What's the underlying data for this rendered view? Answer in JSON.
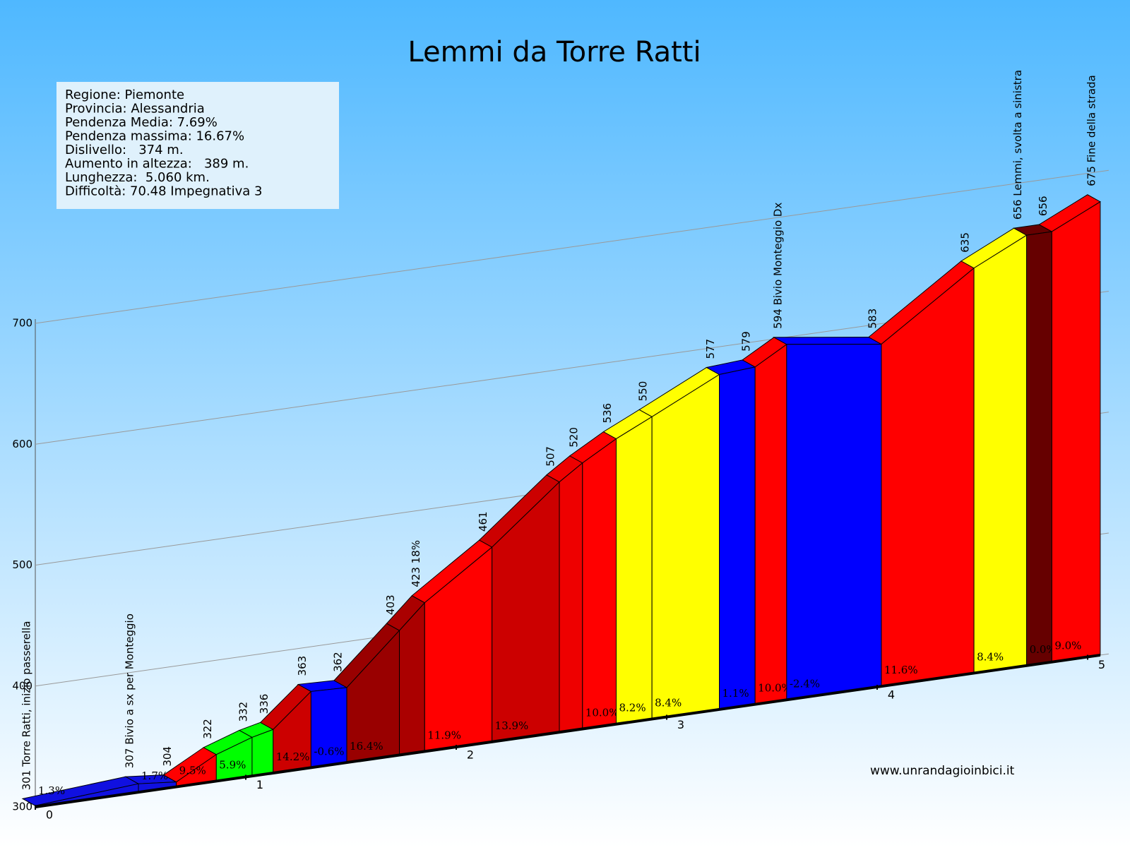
{
  "chart_data": {
    "type": "profile",
    "title": "Lemmi da Torre Ratti",
    "info": [
      "Regione: Piemonte",
      "Provincia: Alessandria",
      "Pendenza Media: 7.69%",
      "Pendenza massima: 16.67%",
      "Dislivello:   374 m.",
      "Aumento in altezza:   389 m.",
      "Lunghezza:  5.060 km.",
      "Difficoltà: 70.48 Impegnativa 3"
    ],
    "watermark": "www.unrandagioinbici.it",
    "x": [
      0,
      0.49,
      0.67,
      0.86,
      1.03,
      1.13,
      1.31,
      1.48,
      1.73,
      1.85,
      2.17,
      2.49,
      2.6,
      2.76,
      2.93,
      3.25,
      3.42,
      3.57,
      4.02,
      4.46,
      4.71,
      4.83,
      5.06
    ],
    "values": [
      301,
      307,
      304,
      322,
      332,
      336,
      363,
      362,
      403,
      423,
      461,
      507,
      520,
      536,
      550,
      577,
      579,
      594,
      583,
      635,
      656,
      656,
      675
    ],
    "value_labels": [
      "301 Torre Ratti,  inizio passerella",
      "307 Bivio a sx per Monteggio",
      "304",
      "322",
      "332",
      "336",
      "363",
      "362",
      "403",
      "423 18%",
      "461",
      "507",
      "520",
      "536",
      "550",
      "577",
      "579",
      "594 Bivio Monteggio Dx",
      "583",
      "635",
      "656 Lemmi, svolta a sinistra",
      "656",
      "675 Fine della strada"
    ],
    "segment_labels": [
      "1.3%",
      "1.7%",
      "9.5%",
      "5.9%",
      null,
      "14.2%",
      "-0.6%",
      "16.4%",
      null,
      "11.9%",
      "13.9%",
      null,
      "10.0%",
      "8.2%",
      "8.4%",
      "1.1%",
      "10.0%",
      "-2.4%",
      "11.6%",
      "8.4%",
      "0.0%",
      "9.0%"
    ],
    "segment_colors": [
      "#1010e0",
      "#1010e0",
      "#ff0000",
      "#00ff00",
      "#00ff00",
      "#cc0000",
      "#0000ff",
      "#990000",
      "#aa0000",
      "#ff0000",
      "#cc0000",
      "#ee0000",
      "#ff0000",
      "#ffff00",
      "#ffff00",
      "#0000ff",
      "#ff0000",
      "#0000ff",
      "#ff0000",
      "#ffff00",
      "#660000",
      "#ff0000"
    ],
    "ylim": [
      300,
      700
    ],
    "yticks": [
      300,
      400,
      500,
      600,
      700
    ],
    "xticks": [
      0,
      1,
      2,
      3,
      4,
      5
    ],
    "grid": true
  }
}
